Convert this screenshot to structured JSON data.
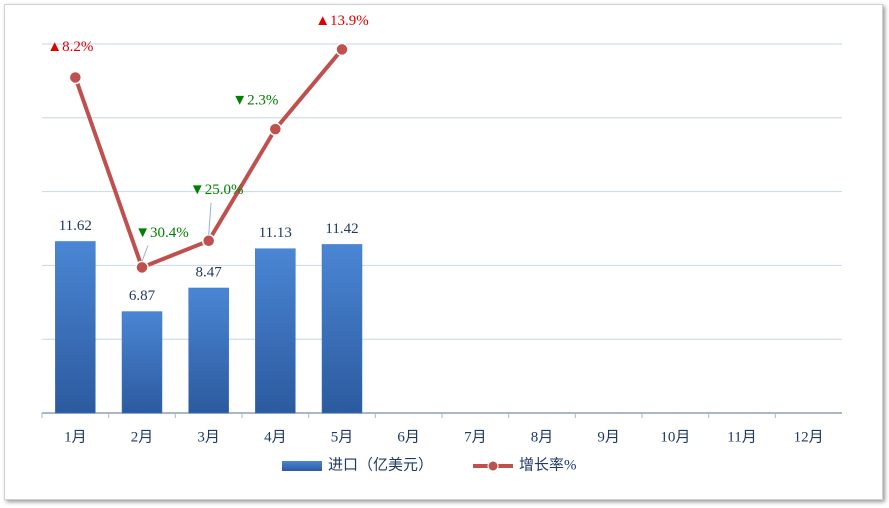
{
  "chart_data": {
    "type": "combo",
    "categories": [
      "1月",
      "2月",
      "3月",
      "4月",
      "5月",
      "6月",
      "7月",
      "8月",
      "9月",
      "10月",
      "11月",
      "12月"
    ],
    "series": [
      {
        "name": "进口（亿美元）",
        "type": "bar",
        "color": "#3a74c4",
        "values": [
          11.62,
          6.87,
          8.47,
          11.13,
          11.42,
          null,
          null,
          null,
          null,
          null,
          null,
          null
        ]
      },
      {
        "name": "增长率%",
        "type": "line",
        "axis": "y2",
        "color": "#c0504d",
        "values": [
          8.2,
          -30.4,
          -25.0,
          -2.3,
          13.9,
          null,
          null,
          null,
          null,
          null,
          null,
          null
        ],
        "value_labels": [
          "▲8.2%",
          "▼30.4%",
          "▼25.0%",
          "▼2.3%",
          "▲13.9%",
          null,
          null,
          null,
          null,
          null,
          null,
          null
        ]
      }
    ],
    "ylim": [
      0,
      25
    ],
    "yticks": [
      0,
      5,
      10,
      15,
      20,
      25
    ],
    "y2lim": [
      -60,
      15
    ],
    "grid": true,
    "legend": "bottom"
  }
}
